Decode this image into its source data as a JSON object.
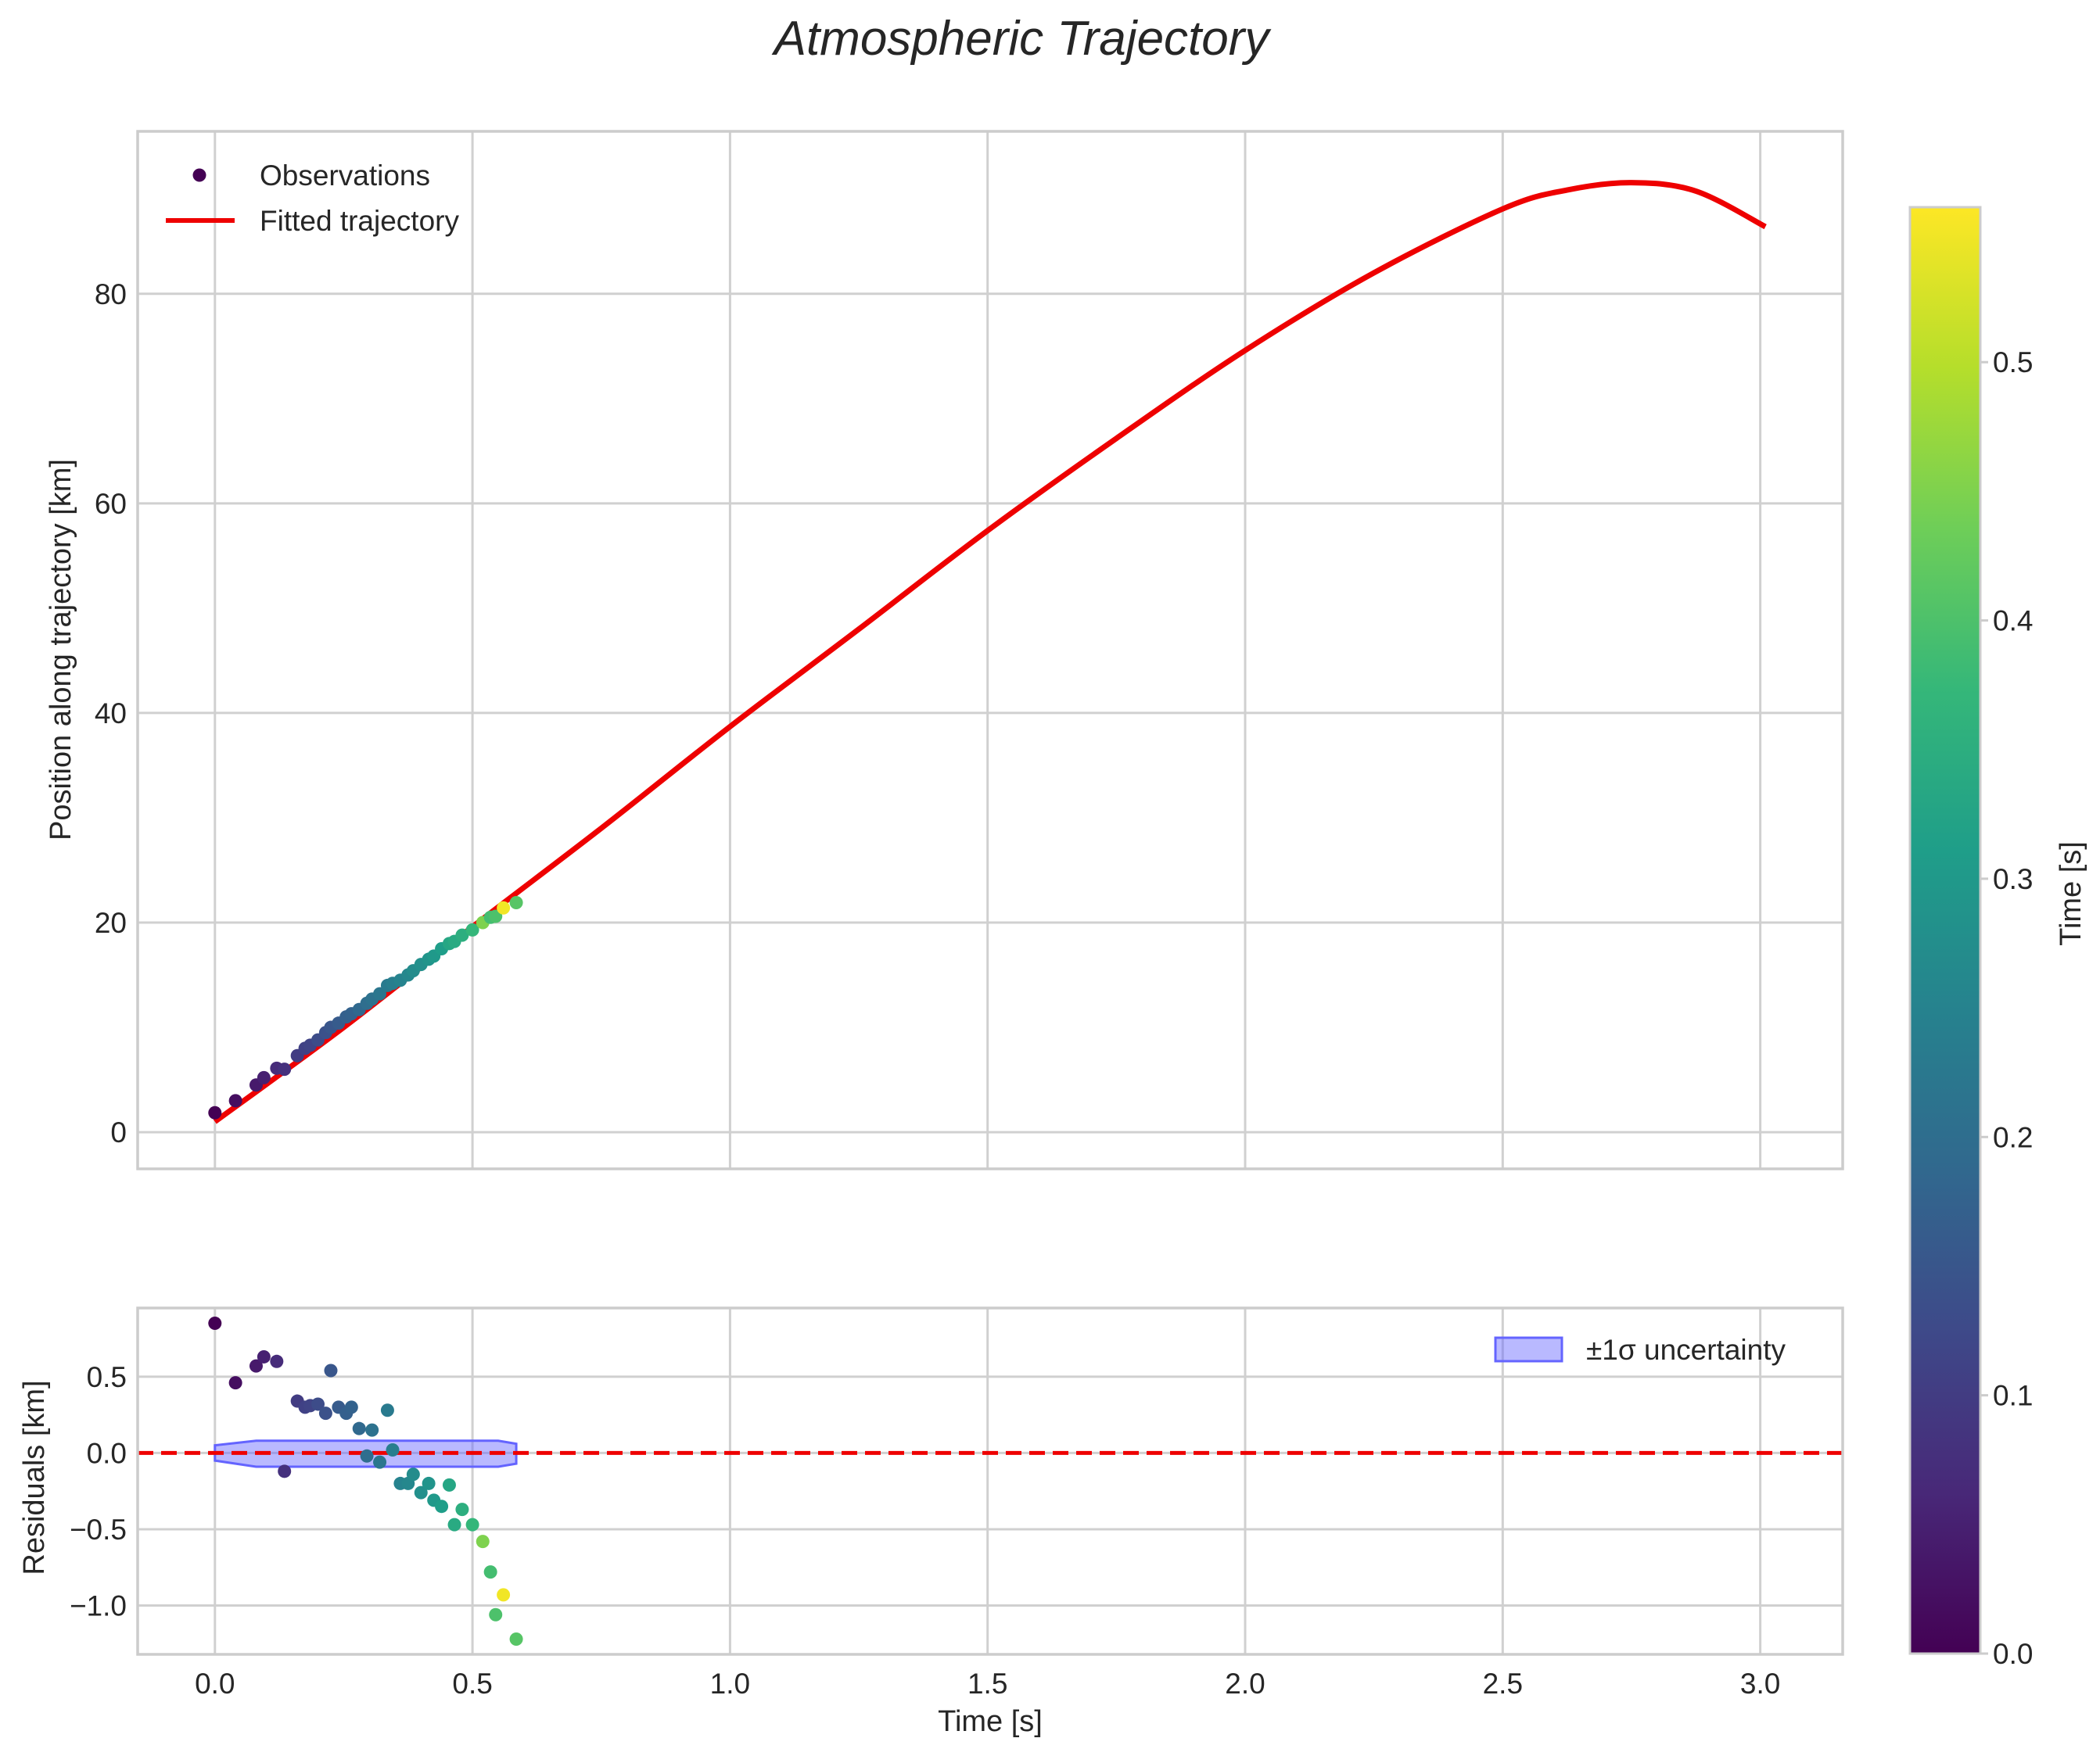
{
  "figure": {
    "title": "Atmospheric Trajectory"
  },
  "chart_data": [
    {
      "type": "scatter",
      "panel": "top",
      "xlabel": "",
      "ylabel": "Position along trajectory [km]",
      "xlim": [
        -0.15,
        3.16
      ],
      "ylim": [
        -3.5,
        95.5
      ],
      "xticks": [
        0.0,
        0.5,
        1.0,
        1.5,
        2.0,
        2.5,
        3.0
      ],
      "yticks": [
        0,
        20,
        40,
        60,
        80
      ],
      "ytick_labels": [
        "0",
        "20",
        "40",
        "60",
        "80"
      ],
      "grid": true,
      "legend_position": "top-left",
      "legend": [
        "Observations",
        "Fitted trajectory"
      ],
      "series": [
        {
          "name": "Observations",
          "kind": "scatter",
          "x": [
            0.0,
            0.04,
            0.08,
            0.095,
            0.12,
            0.135,
            0.16,
            0.175,
            0.185,
            0.2,
            0.215,
            0.225,
            0.24,
            0.255,
            0.265,
            0.28,
            0.295,
            0.305,
            0.32,
            0.335,
            0.345,
            0.36,
            0.375,
            0.385,
            0.4,
            0.415,
            0.425,
            0.44,
            0.455,
            0.465,
            0.48,
            0.5,
            0.52,
            0.535,
            0.545,
            0.56,
            0.585
          ],
          "y": [
            1.85,
            3.0,
            4.5,
            5.2,
            6.1,
            6.0,
            7.3,
            8.0,
            8.3,
            8.8,
            9.5,
            10.0,
            10.4,
            11.0,
            11.3,
            11.7,
            12.3,
            12.7,
            13.2,
            14.0,
            14.2,
            14.5,
            15.0,
            15.4,
            16.0,
            16.5,
            16.8,
            17.5,
            18.0,
            18.2,
            18.8,
            19.3,
            20.0,
            20.5,
            20.6,
            21.4,
            21.9
          ],
          "color_values": [
            0.0,
            0.02,
            0.04,
            0.05,
            0.07,
            0.08,
            0.1,
            0.11,
            0.115,
            0.13,
            0.14,
            0.15,
            0.16,
            0.17,
            0.175,
            0.19,
            0.2,
            0.21,
            0.22,
            0.23,
            0.24,
            0.25,
            0.26,
            0.27,
            0.28,
            0.29,
            0.3,
            0.31,
            0.33,
            0.34,
            0.35,
            0.37,
            0.45,
            0.39,
            0.4,
            0.55,
            0.41
          ]
        },
        {
          "name": "Fitted trajectory",
          "kind": "line",
          "color": "#ee0000",
          "x": [
            0.0,
            0.25,
            0.5,
            0.75,
            1.0,
            1.25,
            1.5,
            1.75,
            2.0,
            2.25,
            2.5,
            2.625,
            2.75,
            2.875,
            3.01
          ],
          "y": [
            1.0,
            10.0,
            19.6,
            29.0,
            38.7,
            48.0,
            57.4,
            66.2,
            74.6,
            82.0,
            88.1,
            89.9,
            90.6,
            89.8,
            86.4
          ]
        }
      ]
    },
    {
      "type": "scatter",
      "panel": "bottom",
      "xlabel": "Time [s]",
      "ylabel": "Residuals [km]",
      "xlim": [
        -0.15,
        3.16
      ],
      "ylim": [
        -1.32,
        0.95
      ],
      "xticks": [
        0.0,
        0.5,
        1.0,
        1.5,
        2.0,
        2.5,
        3.0
      ],
      "xtick_labels": [
        "0.0",
        "0.5",
        "1.0",
        "1.5",
        "2.0",
        "2.5",
        "3.0"
      ],
      "yticks": [
        0.5,
        0.0,
        -0.5,
        -1.0
      ],
      "ytick_labels": [
        "0.5",
        "0.0",
        "−0.5",
        "−1.0"
      ],
      "grid": true,
      "legend_position": "top-right",
      "legend": [
        "±1σ uncertainty"
      ],
      "reference_line": {
        "y": 0.0,
        "style": "dashed",
        "color": "#ee0000"
      },
      "uncertainty_band": {
        "label": "±1σ uncertainty",
        "color": "#6464ff",
        "x": [
          0.0,
          0.08,
          0.5,
          0.55,
          0.585
        ],
        "upper": [
          0.05,
          0.08,
          0.08,
          0.08,
          0.06
        ],
        "lower": [
          -0.05,
          -0.09,
          -0.09,
          -0.09,
          -0.07
        ]
      },
      "series": [
        {
          "name": "Residuals",
          "kind": "scatter",
          "x": [
            0.0,
            0.04,
            0.08,
            0.095,
            0.12,
            0.135,
            0.16,
            0.175,
            0.185,
            0.2,
            0.215,
            0.225,
            0.24,
            0.255,
            0.265,
            0.28,
            0.295,
            0.305,
            0.32,
            0.335,
            0.345,
            0.36,
            0.375,
            0.385,
            0.4,
            0.415,
            0.425,
            0.44,
            0.455,
            0.465,
            0.48,
            0.5,
            0.52,
            0.535,
            0.545,
            0.56,
            0.585
          ],
          "y": [
            0.85,
            0.46,
            0.57,
            0.63,
            0.6,
            -0.12,
            0.34,
            0.3,
            0.31,
            0.32,
            0.26,
            0.54,
            0.3,
            0.26,
            0.3,
            0.16,
            -0.02,
            0.15,
            -0.06,
            0.28,
            0.02,
            -0.2,
            -0.2,
            -0.14,
            -0.26,
            -0.2,
            -0.31,
            -0.35,
            -0.21,
            -0.47,
            -0.37,
            -0.47,
            -0.58,
            -0.78,
            -1.06,
            -0.93,
            -1.22
          ],
          "color_values": [
            0.0,
            0.02,
            0.04,
            0.05,
            0.07,
            0.08,
            0.1,
            0.11,
            0.115,
            0.13,
            0.14,
            0.15,
            0.16,
            0.17,
            0.175,
            0.19,
            0.2,
            0.21,
            0.22,
            0.23,
            0.24,
            0.25,
            0.26,
            0.27,
            0.28,
            0.29,
            0.3,
            0.31,
            0.33,
            0.34,
            0.35,
            0.37,
            0.45,
            0.39,
            0.4,
            0.55,
            0.41
          ]
        }
      ]
    }
  ],
  "colorbar": {
    "label": "Time [s]",
    "range": [
      0.0,
      0.56
    ],
    "ticks": [
      0.0,
      0.1,
      0.2,
      0.3,
      0.4,
      0.5
    ],
    "tick_labels": [
      "0.0",
      "0.1",
      "0.2",
      "0.3",
      "0.4",
      "0.5"
    ],
    "colormap": [
      "#440154",
      "#482878",
      "#3e4989",
      "#31688e",
      "#26828e",
      "#1f9e89",
      "#35b779",
      "#6ece58",
      "#b5de2b",
      "#fde725"
    ]
  }
}
